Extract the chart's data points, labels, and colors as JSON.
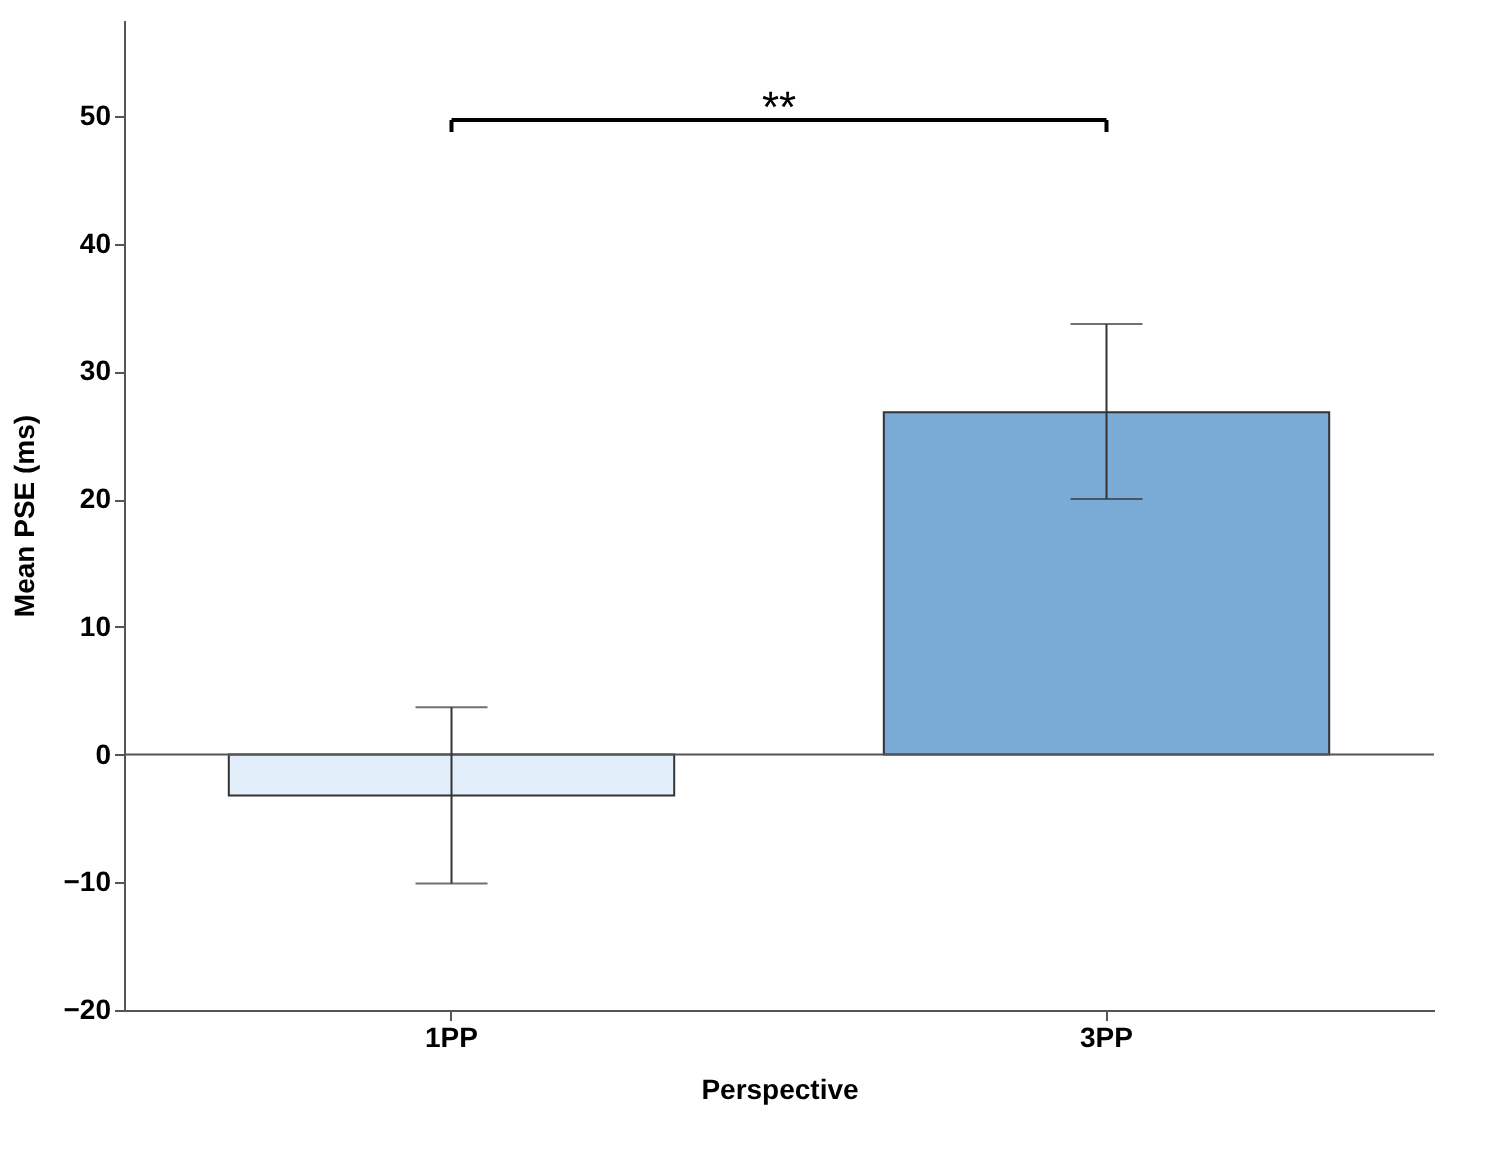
{
  "chart_data": {
    "type": "bar",
    "xlabel": "Perspective",
    "ylabel": "Mean PSE (ms)",
    "categories": [
      "1PP",
      "3PP"
    ],
    "values": [
      -3.2,
      26.8
    ],
    "colors": [
      "#e2eef9",
      "#7aaad6"
    ],
    "errors": [
      [
        -10.1,
        3.7
      ],
      [
        20.0,
        33.7
      ]
    ],
    "ylim": [
      -20,
      57.5
    ],
    "yticks": [
      -20,
      -10,
      0,
      10,
      20,
      30,
      40,
      50
    ],
    "ref_lines": [
      {
        "axis": "y",
        "value": 0,
        "color": "#555555"
      }
    ],
    "annotations": [
      "**"
    ],
    "grid": false
  }
}
